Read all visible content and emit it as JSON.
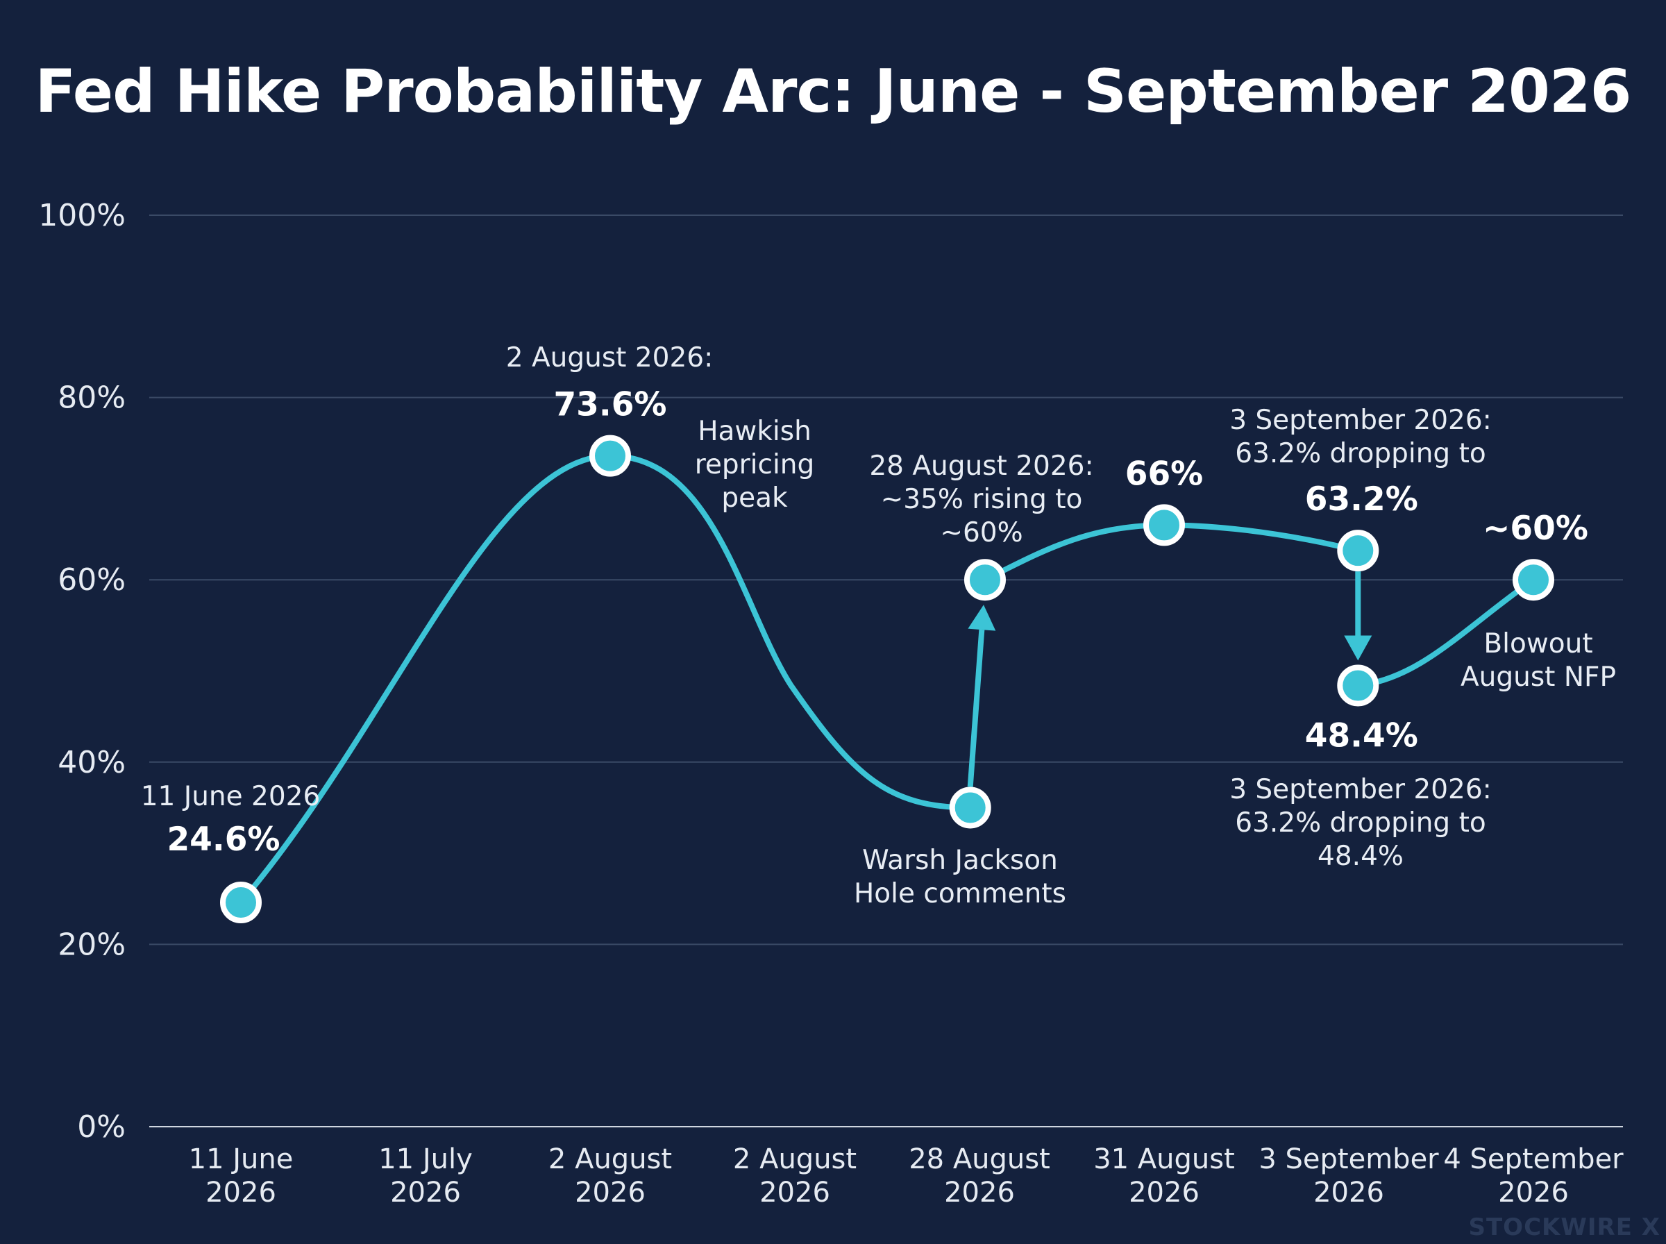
{
  "chart_data": {
    "type": "line",
    "title": "Fed Hike Probability Arc: June - September 2026",
    "xlabel": "",
    "ylabel": "",
    "ylim": [
      0,
      100
    ],
    "y_ticks": [
      "0%",
      "20%",
      "40%",
      "60%",
      "80%",
      "100%"
    ],
    "grid": true,
    "categories": [
      "11 June\n2026",
      "11 July\n2026",
      "2 August\n2026",
      "2 August\n2026",
      "28 August\n2026",
      "31 August\n2026",
      "3 September\n2026",
      "4 September\n2026"
    ],
    "series": [
      {
        "points": [
          {
            "x": "11 June 2026",
            "y": 24.6,
            "label": "24.6%"
          },
          {
            "x": "2 August 2026",
            "y": 73.6,
            "label": "73.6%"
          },
          {
            "x": "28 August 2026",
            "y": 35,
            "label": ""
          },
          {
            "x": "28 August 2026",
            "y": 60,
            "label": ""
          },
          {
            "x": "31 August 2026",
            "y": 66,
            "label": "66%"
          },
          {
            "x": "3 September 2026",
            "y": 63.2,
            "label": "63.2%"
          },
          {
            "x": "3 September 2026",
            "y": 48.4,
            "label": "48.4%"
          },
          {
            "x": "4 September 2026",
            "y": 60,
            "label": "~60%"
          }
        ]
      }
    ],
    "annotations": [
      {
        "text": "11 June 2026"
      },
      {
        "text": "2 August 2026:"
      },
      {
        "text": "Hawkish\nrepricing\npeak"
      },
      {
        "text": "Warsh Jackson\nHole comments"
      },
      {
        "text": "28 August 2026:\n~35% rising to\n~60%"
      },
      {
        "text": "3 September 2026:\n63.2% dropping to"
      },
      {
        "text": "3 September 2026:\n63.2% dropping to\n48.4%"
      },
      {
        "text": "Blowout\nAugust NFP"
      }
    ],
    "colors": {
      "background": "#14213d",
      "line": "#3cc4d6",
      "marker_fill": "#3cc4d6",
      "marker_stroke": "#ffffff",
      "grid": "#3a4a66",
      "text": "#ffffff"
    }
  },
  "watermark": "STOCKWIRE X"
}
